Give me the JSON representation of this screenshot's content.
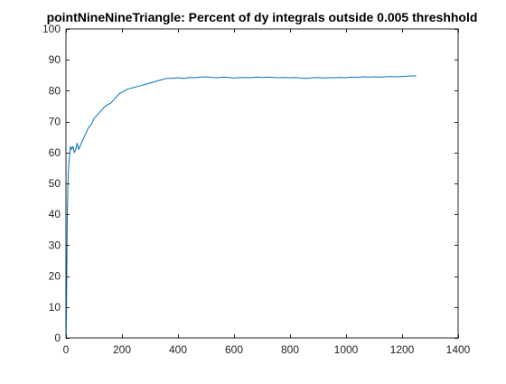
{
  "chart_data": {
    "type": "line",
    "title": "pointNineNineTriangle: Percent of dy integrals outside 0.005 threshhold",
    "xlabel": "",
    "ylabel": "",
    "xlim": [
      0,
      1400
    ],
    "ylim": [
      0,
      100
    ],
    "xticks": [
      0,
      200,
      400,
      600,
      800,
      1000,
      1200,
      1400
    ],
    "yticks": [
      0,
      10,
      20,
      30,
      40,
      50,
      60,
      70,
      80,
      90,
      100
    ],
    "grid": false,
    "legend": "none",
    "line_color": "#0072BD",
    "series": [
      {
        "x": [
          1,
          2,
          3,
          5,
          7,
          10,
          13,
          16,
          20,
          25,
          30,
          35,
          40,
          45,
          50,
          55,
          60,
          65,
          70,
          80,
          90,
          100,
          110,
          120,
          130,
          140,
          150,
          160,
          170,
          180,
          190,
          200,
          220,
          240,
          260,
          280,
          300,
          320,
          340,
          360,
          380,
          400,
          420,
          440,
          460,
          480,
          500,
          520,
          540,
          560,
          580,
          600,
          620,
          640,
          660,
          680,
          700,
          720,
          740,
          760,
          780,
          800,
          820,
          840,
          860,
          880,
          900,
          920,
          940,
          960,
          980,
          1000,
          1020,
          1040,
          1060,
          1080,
          1100,
          1120,
          1140,
          1160,
          1180,
          1200,
          1220,
          1240,
          1250
        ],
        "values": [
          0,
          8,
          20,
          40,
          50,
          56,
          59,
          62,
          61,
          62,
          60,
          61,
          63,
          61,
          62,
          63,
          64,
          65,
          66,
          68,
          69,
          71,
          72,
          73,
          74,
          75,
          75.5,
          76,
          77,
          78,
          79,
          79.5,
          80.5,
          81,
          81.5,
          82,
          82.5,
          83,
          83.5,
          84,
          84,
          84.2,
          84,
          84.3,
          84.2,
          84.4,
          84.5,
          84.3,
          84.2,
          84.4,
          84.3,
          84.1,
          84.2,
          84.3,
          84.2,
          84.4,
          84.3,
          84.4,
          84.3,
          84.2,
          84.3,
          84.2,
          84.3,
          84.1,
          84,
          84.2,
          84.3,
          84.1,
          84.2,
          84.2,
          84.3,
          84.2,
          84.4,
          84.3,
          84.5,
          84.4,
          84.5,
          84.4,
          84.5,
          84.6,
          84.5,
          84.6,
          84.7,
          84.8,
          84.8
        ]
      }
    ]
  }
}
